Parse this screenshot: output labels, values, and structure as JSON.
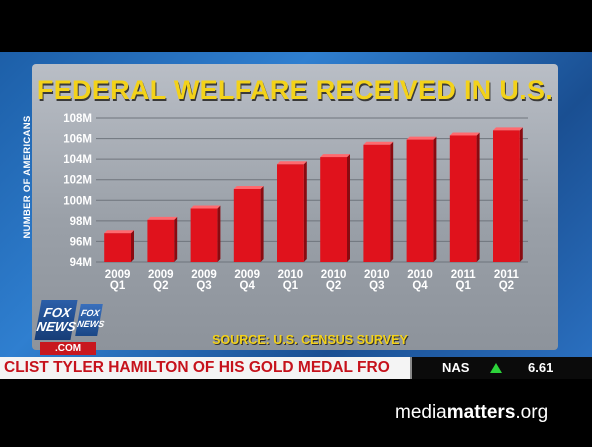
{
  "chart_data": {
    "type": "bar",
    "title": "FEDERAL WELFARE RECEIVED IN U.S.",
    "ylabel": "NUMBER OF AMERICANS",
    "xlabel": "",
    "categories": [
      [
        "2009",
        "Q1"
      ],
      [
        "2009",
        "Q2"
      ],
      [
        "2009",
        "Q3"
      ],
      [
        "2009",
        "Q4"
      ],
      [
        "2010",
        "Q1"
      ],
      [
        "2010",
        "Q2"
      ],
      [
        "2010",
        "Q3"
      ],
      [
        "2010",
        "Q4"
      ],
      [
        "2011",
        "Q1"
      ],
      [
        "2011",
        "Q2"
      ]
    ],
    "values": [
      96.8,
      98.1,
      99.2,
      101.1,
      103.5,
      104.2,
      105.4,
      105.9,
      106.3,
      106.8
    ],
    "ylim": [
      94,
      108
    ],
    "yticks": [
      94,
      96,
      98,
      100,
      102,
      104,
      106,
      108
    ],
    "ytick_labels": [
      "94M",
      "96M",
      "98M",
      "100M",
      "102M",
      "104M",
      "106M",
      "108M"
    ],
    "grid": true,
    "bar_color": "#e0121c"
  },
  "source": "SOURCE: U.S. CENSUS SURVEY",
  "logo": {
    "main": "FOX NEWS",
    "small": "FOX NEWS",
    "com": ".COM"
  },
  "ticker": {
    "text": "CLIST TYLER HAMILTON OF HIS GOLD MEDAL FRO",
    "stock_name": "NAS",
    "stock_value": "6.61",
    "stock_color": "#2cd33a"
  },
  "watermark": {
    "prefix": "media",
    "bold": "matters",
    "suffix": ".org"
  }
}
